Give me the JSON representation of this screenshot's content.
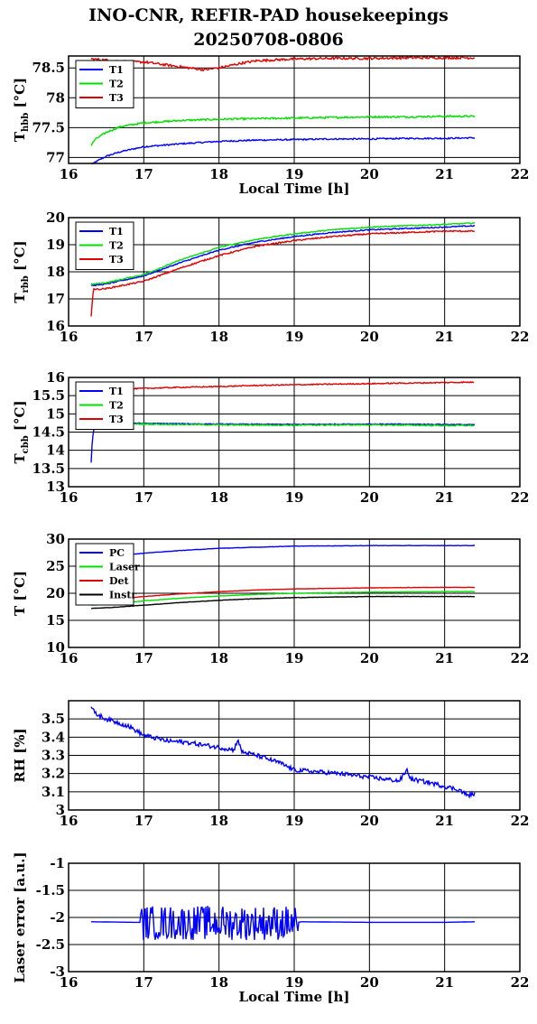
{
  "title": {
    "line1": "INO-CNR, REFIR-PAD housekeepings",
    "line2": "20250708-0806"
  },
  "chart_data": [
    {
      "type": "line",
      "xlabel": "Local Time [h]",
      "ylabel": "T",
      "ylabel_sub": "hbb",
      "ylabel_unit": " [°C]",
      "xlim": [
        16,
        22
      ],
      "ylim": [
        76.9,
        78.7
      ],
      "xticks": [
        "16",
        "17",
        "18",
        "19",
        "20",
        "21",
        "22"
      ],
      "yticks": [
        77,
        77.5,
        78,
        78.5
      ],
      "ytick_labels": [
        "77",
        "77.5",
        "78",
        "78.5"
      ],
      "legend": "top-left",
      "series": [
        {
          "name": "T1",
          "color": "#0000ff",
          "noise": 0.012,
          "x": [
            16.3,
            16.35,
            16.5,
            16.7,
            17.0,
            17.5,
            18.0,
            18.5,
            19.0,
            19.5,
            20.0,
            20.5,
            21.0,
            21.4
          ],
          "y": [
            76.85,
            76.92,
            77.02,
            77.1,
            77.18,
            77.23,
            77.27,
            77.29,
            77.3,
            77.31,
            77.31,
            77.32,
            77.32,
            77.33
          ]
        },
        {
          "name": "T2",
          "color": "#00e000",
          "noise": 0.015,
          "x": [
            16.3,
            16.35,
            16.5,
            16.7,
            17.0,
            17.5,
            18.0,
            18.5,
            19.0,
            19.5,
            20.0,
            20.5,
            21.0,
            21.4
          ],
          "y": [
            77.2,
            77.3,
            77.42,
            77.52,
            77.58,
            77.62,
            77.64,
            77.65,
            77.66,
            77.67,
            77.68,
            77.68,
            77.69,
            77.69
          ]
        },
        {
          "name": "T3",
          "color": "#e00000",
          "noise": 0.02,
          "x": [
            16.3,
            16.8,
            17.0,
            17.3,
            17.6,
            17.8,
            18.0,
            18.3,
            18.5,
            19.0,
            19.5,
            20.0,
            20.5,
            21.0,
            21.4
          ],
          "y": [
            78.65,
            78.6,
            78.6,
            78.55,
            78.5,
            78.47,
            78.5,
            78.58,
            78.62,
            78.65,
            78.66,
            78.66,
            78.67,
            78.67,
            78.67
          ]
        }
      ]
    },
    {
      "type": "line",
      "xlabel": "",
      "ylabel": "T",
      "ylabel_sub": "rbb",
      "ylabel_unit": " [°C]",
      "xlim": [
        16,
        22
      ],
      "ylim": [
        16,
        20
      ],
      "xticks": [
        "16",
        "17",
        "18",
        "19",
        "20",
        "21",
        "22"
      ],
      "yticks": [
        16,
        17,
        18,
        19,
        20
      ],
      "ytick_labels": [
        "16",
        "17",
        "18",
        "19",
        "20"
      ],
      "legend": "top-left",
      "series": [
        {
          "name": "T1",
          "color": "#0000ff",
          "noise": 0.02,
          "x": [
            16.3,
            16.35,
            16.5,
            17.0,
            17.5,
            18.0,
            18.5,
            19.0,
            19.5,
            20.0,
            20.5,
            21.0,
            21.4
          ],
          "y": [
            17.5,
            17.5,
            17.55,
            17.85,
            18.35,
            18.8,
            19.1,
            19.3,
            19.45,
            19.55,
            19.6,
            19.65,
            19.7
          ]
        },
        {
          "name": "T2",
          "color": "#00e000",
          "noise": 0.02,
          "x": [
            16.3,
            16.35,
            16.5,
            17.0,
            17.5,
            18.0,
            18.5,
            19.0,
            19.5,
            20.0,
            20.5,
            21.0,
            21.4
          ],
          "y": [
            17.55,
            17.55,
            17.6,
            17.9,
            18.45,
            18.9,
            19.2,
            19.4,
            19.55,
            19.65,
            19.7,
            19.75,
            19.8
          ]
        },
        {
          "name": "T3",
          "color": "#e00000",
          "noise": 0.025,
          "x": [
            16.3,
            16.33,
            16.36,
            16.5,
            17.0,
            17.5,
            18.0,
            18.5,
            19.0,
            19.5,
            20.0,
            20.5,
            21.0,
            21.4
          ],
          "y": [
            16.35,
            17.4,
            17.35,
            17.38,
            17.65,
            18.15,
            18.6,
            18.95,
            19.15,
            19.3,
            19.4,
            19.45,
            19.5,
            19.5
          ]
        }
      ]
    },
    {
      "type": "line",
      "xlabel": "",
      "ylabel": "T",
      "ylabel_sub": "cbb",
      "ylabel_unit": " [°C]",
      "xlim": [
        16,
        22
      ],
      "ylim": [
        13,
        16
      ],
      "xticks": [
        "16",
        "17",
        "18",
        "19",
        "20",
        "21",
        "22"
      ],
      "yticks": [
        13,
        13.5,
        14,
        14.5,
        15,
        15.5,
        16
      ],
      "ytick_labels": [
        "13",
        "13.5",
        "14",
        "14.5",
        "15",
        "15.5",
        "16"
      ],
      "legend": "top-left",
      "series": [
        {
          "name": "T1",
          "color": "#0000ff",
          "noise": 0.012,
          "x": [
            16.3,
            16.31,
            16.33,
            16.36,
            16.4,
            16.6,
            17.0,
            18.0,
            19.0,
            20.0,
            21.0,
            21.4
          ],
          "y": [
            13.65,
            14.1,
            14.55,
            14.7,
            14.75,
            14.75,
            14.74,
            14.72,
            14.71,
            14.72,
            14.71,
            14.7
          ]
        },
        {
          "name": "T2",
          "color": "#00e000",
          "noise": 0.018,
          "x": [
            16.35,
            16.6,
            17.0,
            18.0,
            19.0,
            20.0,
            21.0,
            21.4
          ],
          "y": [
            14.7,
            14.72,
            14.72,
            14.7,
            14.69,
            14.7,
            14.68,
            14.68
          ]
        },
        {
          "name": "T3",
          "color": "#e00000",
          "noise": 0.015,
          "x": [
            16.35,
            16.6,
            17.0,
            17.5,
            18.0,
            18.5,
            19.0,
            20.0,
            21.0,
            21.4
          ],
          "y": [
            15.65,
            15.67,
            15.7,
            15.73,
            15.75,
            15.78,
            15.8,
            15.83,
            15.86,
            15.87
          ]
        }
      ]
    },
    {
      "type": "line",
      "xlabel": "",
      "ylabel": "T [°C]",
      "xlim": [
        16,
        22
      ],
      "ylim": [
        10,
        30
      ],
      "xticks": [
        "16",
        "17",
        "18",
        "19",
        "20",
        "21",
        "22"
      ],
      "yticks": [
        10,
        15,
        20,
        25,
        30
      ],
      "ytick_labels": [
        "10",
        "15",
        "20",
        "25",
        "30"
      ],
      "legend": "top-left",
      "series": [
        {
          "name": "PC",
          "color": "#0000ff",
          "noise": 0.03,
          "x": [
            16.3,
            16.6,
            17.0,
            17.5,
            18.0,
            18.5,
            19.0,
            19.5,
            20.0,
            21.0,
            21.4
          ],
          "y": [
            26.5,
            26.9,
            27.4,
            27.9,
            28.3,
            28.5,
            28.7,
            28.75,
            28.8,
            28.8,
            28.8
          ]
        },
        {
          "name": "Laser",
          "color": "#00e000",
          "noise": 0.04,
          "x": [
            16.3,
            16.6,
            17.0,
            17.5,
            18.0,
            18.5,
            19.0,
            19.5,
            20.0,
            21.0,
            21.4
          ],
          "y": [
            17.8,
            18.1,
            18.6,
            19.1,
            19.5,
            19.8,
            20.0,
            20.1,
            20.2,
            20.3,
            20.3
          ]
        },
        {
          "name": "Det",
          "color": "#e00000",
          "noise": 0.03,
          "x": [
            16.3,
            16.6,
            17.0,
            17.5,
            18.0,
            18.5,
            19.0,
            19.5,
            20.0,
            21.0,
            21.4
          ],
          "y": [
            18.5,
            18.9,
            19.4,
            19.9,
            20.3,
            20.6,
            20.8,
            20.9,
            21.0,
            21.1,
            21.1
          ]
        },
        {
          "name": "Instr",
          "color": "#000000",
          "noise": 0.03,
          "x": [
            16.3,
            16.6,
            17.0,
            17.5,
            18.0,
            18.5,
            19.0,
            19.5,
            20.0,
            21.0,
            21.4
          ],
          "y": [
            17.2,
            17.4,
            17.8,
            18.3,
            18.7,
            19.0,
            19.2,
            19.3,
            19.4,
            19.4,
            19.4
          ]
        }
      ]
    },
    {
      "type": "line",
      "xlabel": "",
      "ylabel": "RH [%]",
      "xlim": [
        16,
        22
      ],
      "ylim": [
        3.0,
        3.6
      ],
      "xticks": [
        "16",
        "17",
        "18",
        "19",
        "20",
        "21",
        "22"
      ],
      "yticks": [
        3.0,
        3.1,
        3.2,
        3.3,
        3.4,
        3.5
      ],
      "ytick_labels": [
        "3",
        "3.1",
        "3.2",
        "3.3",
        "3.4",
        "3.5"
      ],
      "legend": "none",
      "series": [
        {
          "name": "",
          "color": "#0000ff",
          "noise": 0.012,
          "x": [
            16.3,
            16.35,
            16.5,
            16.8,
            17.0,
            17.3,
            17.6,
            17.9,
            18.2,
            18.25,
            18.3,
            18.5,
            18.8,
            19.0,
            19.3,
            19.6,
            20.0,
            20.4,
            20.5,
            20.55,
            20.8,
            21.0,
            21.2,
            21.3,
            21.4
          ],
          "y": [
            3.57,
            3.53,
            3.5,
            3.46,
            3.41,
            3.38,
            3.37,
            3.35,
            3.33,
            3.39,
            3.32,
            3.3,
            3.26,
            3.22,
            3.21,
            3.2,
            3.18,
            3.16,
            3.22,
            3.17,
            3.15,
            3.13,
            3.11,
            3.08,
            3.09
          ]
        }
      ]
    },
    {
      "type": "line",
      "xlabel": "Local Time [h]",
      "ylabel": "Laser error [a.u.]",
      "xlim": [
        16,
        22
      ],
      "ylim": [
        -3,
        -1
      ],
      "xticks": [
        "16",
        "17",
        "18",
        "19",
        "20",
        "21",
        "22"
      ],
      "yticks": [
        -3,
        -2.5,
        -2,
        -1.5,
        -1
      ],
      "ytick_labels": [
        "-3",
        "-2.5",
        "-2",
        "-1.5",
        "-1"
      ],
      "legend": "none",
      "series": [
        {
          "name": "",
          "color": "#0000ff",
          "noise": 0.0,
          "osc": {
            "start": 16.95,
            "end": 19.05,
            "center": -2.1,
            "amp": 0.32
          },
          "x": [
            16.3,
            16.9,
            16.95,
            19.05,
            19.1,
            20.0,
            21.0,
            21.4
          ],
          "y": [
            -2.08,
            -2.09,
            -2.09,
            -2.09,
            -2.08,
            -2.09,
            -2.09,
            -2.08
          ]
        }
      ]
    }
  ]
}
